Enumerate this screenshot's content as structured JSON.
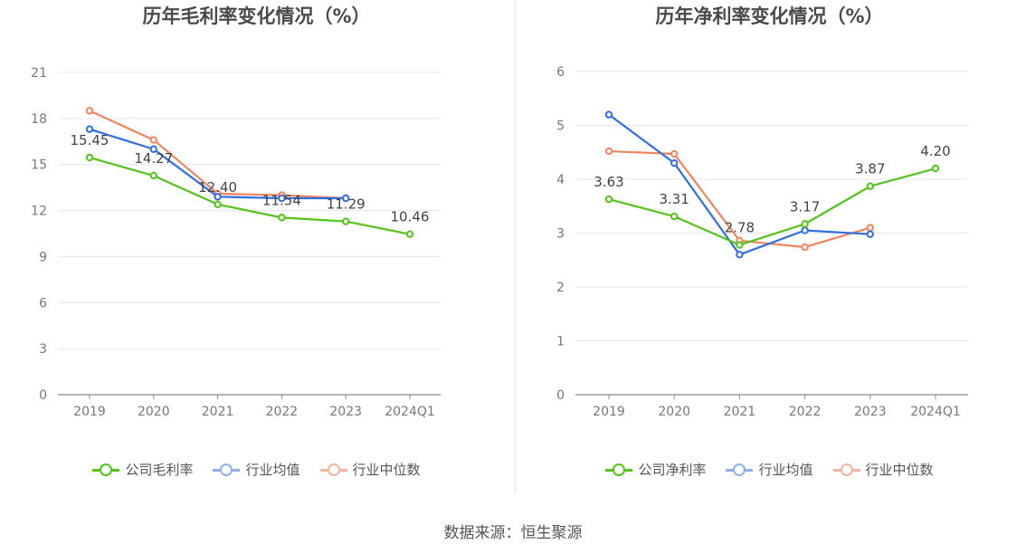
{
  "source": "数据来源：恒生聚源",
  "colors": {
    "company": "#52c41a",
    "avg": "#2f6fe0",
    "median": "#f0845c",
    "avg_legend": "#8fb0ef",
    "median_legend": "#f5b49c"
  },
  "chart_data": [
    {
      "type": "line",
      "title": "历年毛利率变化情况（%）",
      "categories": [
        "2019",
        "2020",
        "2021",
        "2022",
        "2023",
        "2024Q1"
      ],
      "yticks": [
        "0",
        "3",
        "6",
        "9",
        "12",
        "15",
        "18",
        "21"
      ],
      "ylim": [
        0,
        21
      ],
      "grid": true,
      "legend_position": "bottom",
      "series": [
        {
          "name": "公司毛利率",
          "values": [
            15.45,
            14.27,
            12.4,
            11.54,
            11.29,
            10.46
          ],
          "labels": [
            "15.45",
            "14.27",
            "12.40",
            "11.54",
            "11.29",
            "10.46"
          ]
        },
        {
          "name": "行业均值",
          "values": [
            17.3,
            16.0,
            12.9,
            12.8,
            12.8,
            null
          ]
        },
        {
          "name": "行业中位数",
          "values": [
            18.5,
            16.6,
            13.1,
            13.0,
            12.8,
            null
          ]
        }
      ]
    },
    {
      "type": "line",
      "title": "历年净利率变化情况（%）",
      "categories": [
        "2019",
        "2020",
        "2021",
        "2022",
        "2023",
        "2024Q1"
      ],
      "yticks": [
        "0",
        "1",
        "2",
        "3",
        "4",
        "5",
        "6"
      ],
      "ylim": [
        0,
        6
      ],
      "grid": true,
      "legend_position": "bottom",
      "series": [
        {
          "name": "公司净利率",
          "values": [
            3.63,
            3.31,
            2.78,
            3.17,
            3.87,
            4.2
          ],
          "labels": [
            "3.63",
            "3.31",
            "2.78",
            "3.17",
            "3.87",
            "4.20"
          ]
        },
        {
          "name": "行业均值",
          "values": [
            5.2,
            4.3,
            2.6,
            3.05,
            2.98,
            null
          ]
        },
        {
          "name": "行业中位数",
          "values": [
            4.52,
            4.47,
            2.86,
            2.74,
            3.1,
            null
          ]
        }
      ]
    }
  ]
}
